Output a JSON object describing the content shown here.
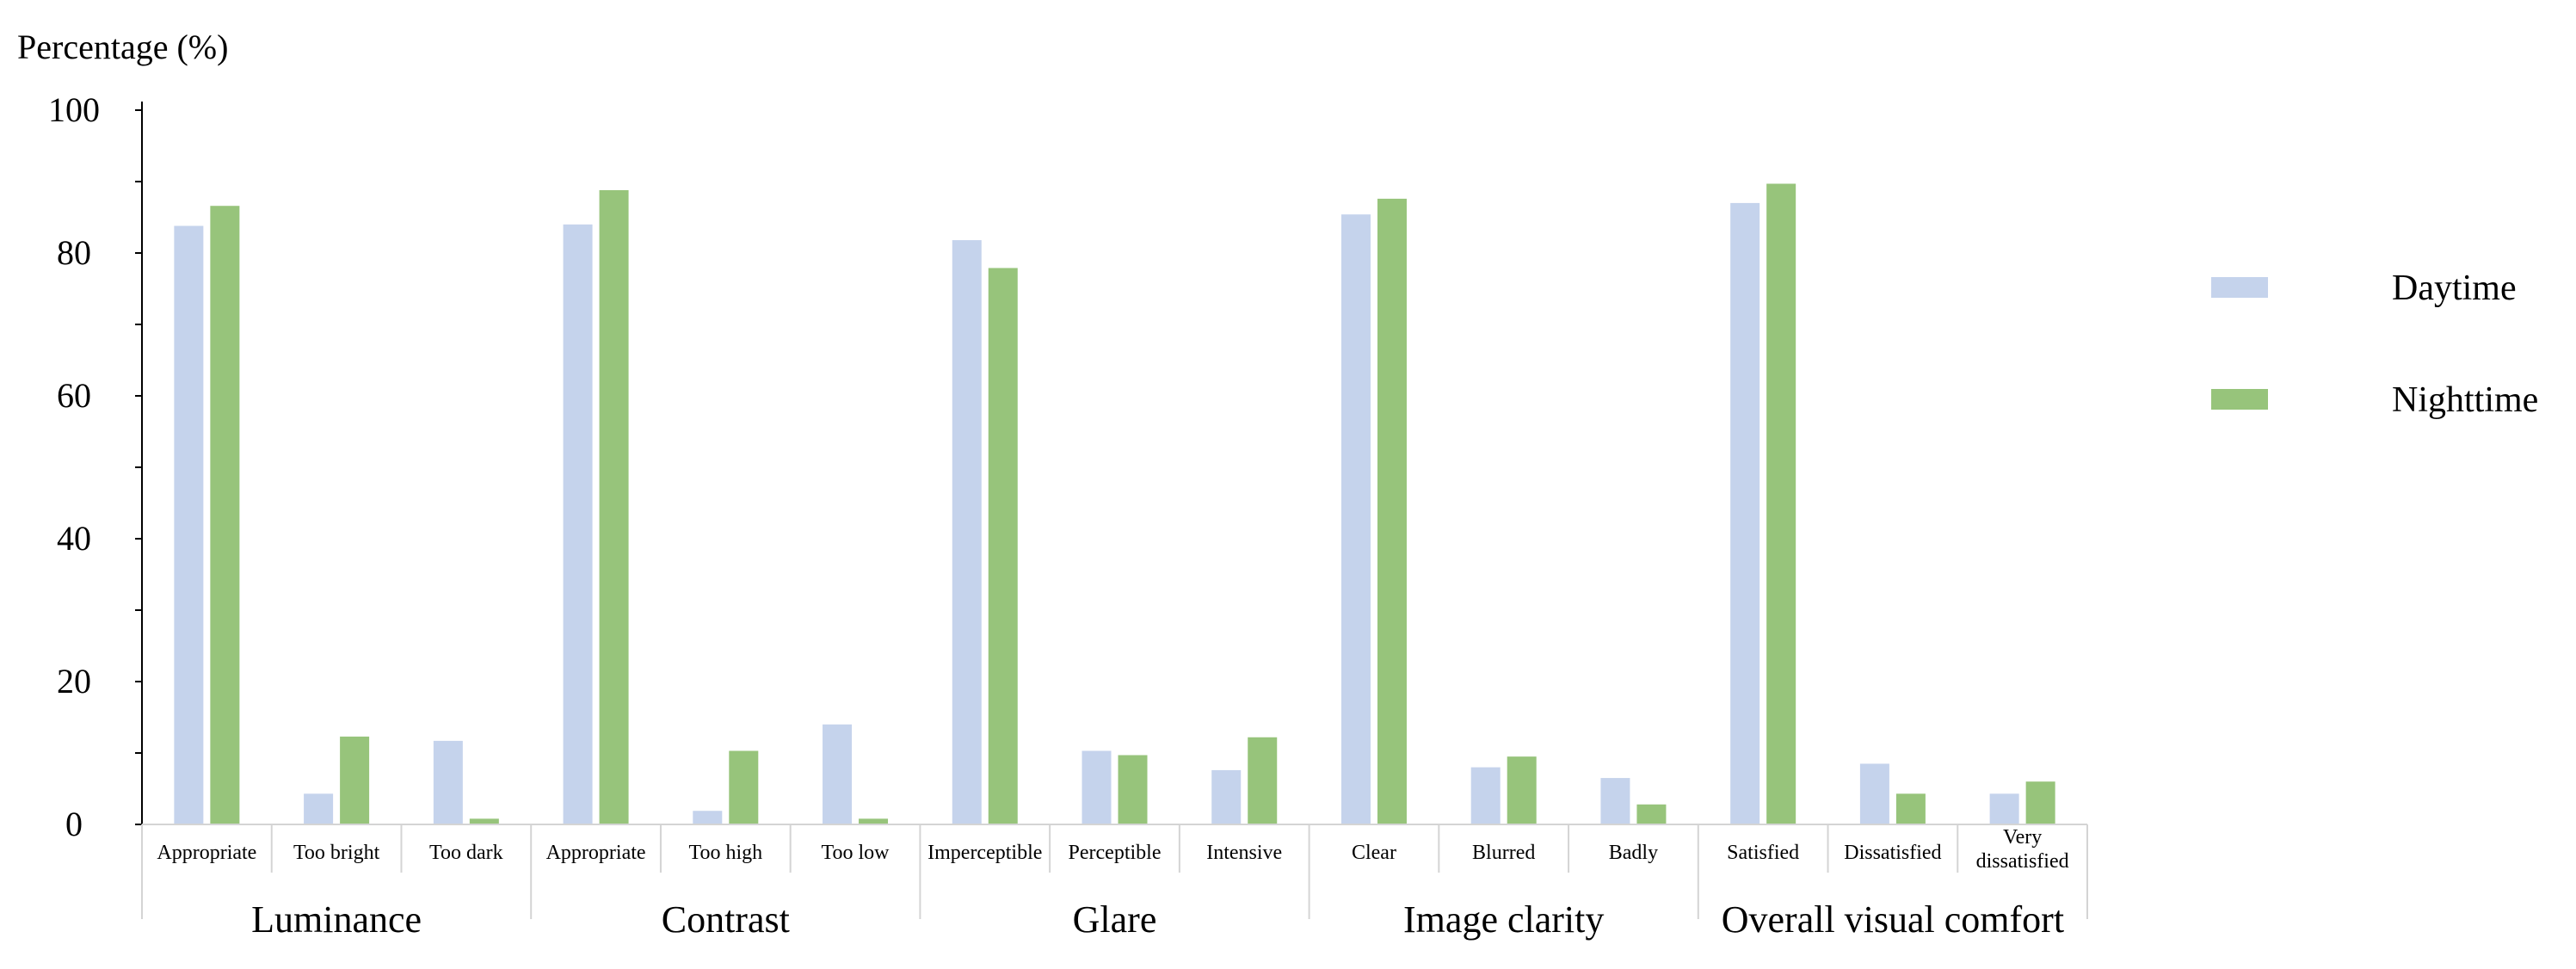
{
  "chart_data": {
    "type": "bar",
    "ylabel": "Percentage (%)",
    "xlabel": "",
    "ylim": [
      0,
      100
    ],
    "yticks": [
      0,
      20,
      40,
      60,
      80,
      100
    ],
    "grid": false,
    "legend_position": "right",
    "groups": [
      {
        "name": "Luminance",
        "categories": [
          "Appropriate",
          "Too bright",
          "Too dark"
        ]
      },
      {
        "name": "Contrast",
        "categories": [
          "Appropriate",
          "Too high",
          "Too low"
        ]
      },
      {
        "name": "Glare",
        "categories": [
          "Imperceptible",
          "Perceptible",
          "Intensive"
        ]
      },
      {
        "name": "Image clarity",
        "categories": [
          "Clear",
          "Blurred",
          "Badly"
        ]
      },
      {
        "name": "Overall visual comfort",
        "categories": [
          "Satisfied",
          "Dissatisfied",
          "Very dissatisfied"
        ]
      }
    ],
    "categories": [
      "Appropriate",
      "Too bright",
      "Too dark",
      "Appropriate",
      "Too high",
      "Too low",
      "Imperceptible",
      "Perceptible",
      "Intensive",
      "Clear",
      "Blurred",
      "Badly",
      "Satisfied",
      "Dissatisfied",
      "Very dissatisfied"
    ],
    "series": [
      {
        "name": "Daytime",
        "color": "#c5d3ec",
        "values": [
          83.8,
          4.3,
          11.7,
          84.0,
          1.9,
          14.0,
          81.8,
          10.3,
          7.6,
          85.4,
          8.0,
          6.5,
          87.0,
          8.5,
          4.3
        ]
      },
      {
        "name": "Nighttime",
        "color": "#97c47b",
        "values": [
          86.6,
          12.3,
          0.8,
          88.8,
          10.3,
          0.8,
          77.9,
          9.7,
          12.2,
          87.6,
          9.5,
          2.8,
          89.7,
          4.3,
          6.0
        ]
      }
    ]
  }
}
